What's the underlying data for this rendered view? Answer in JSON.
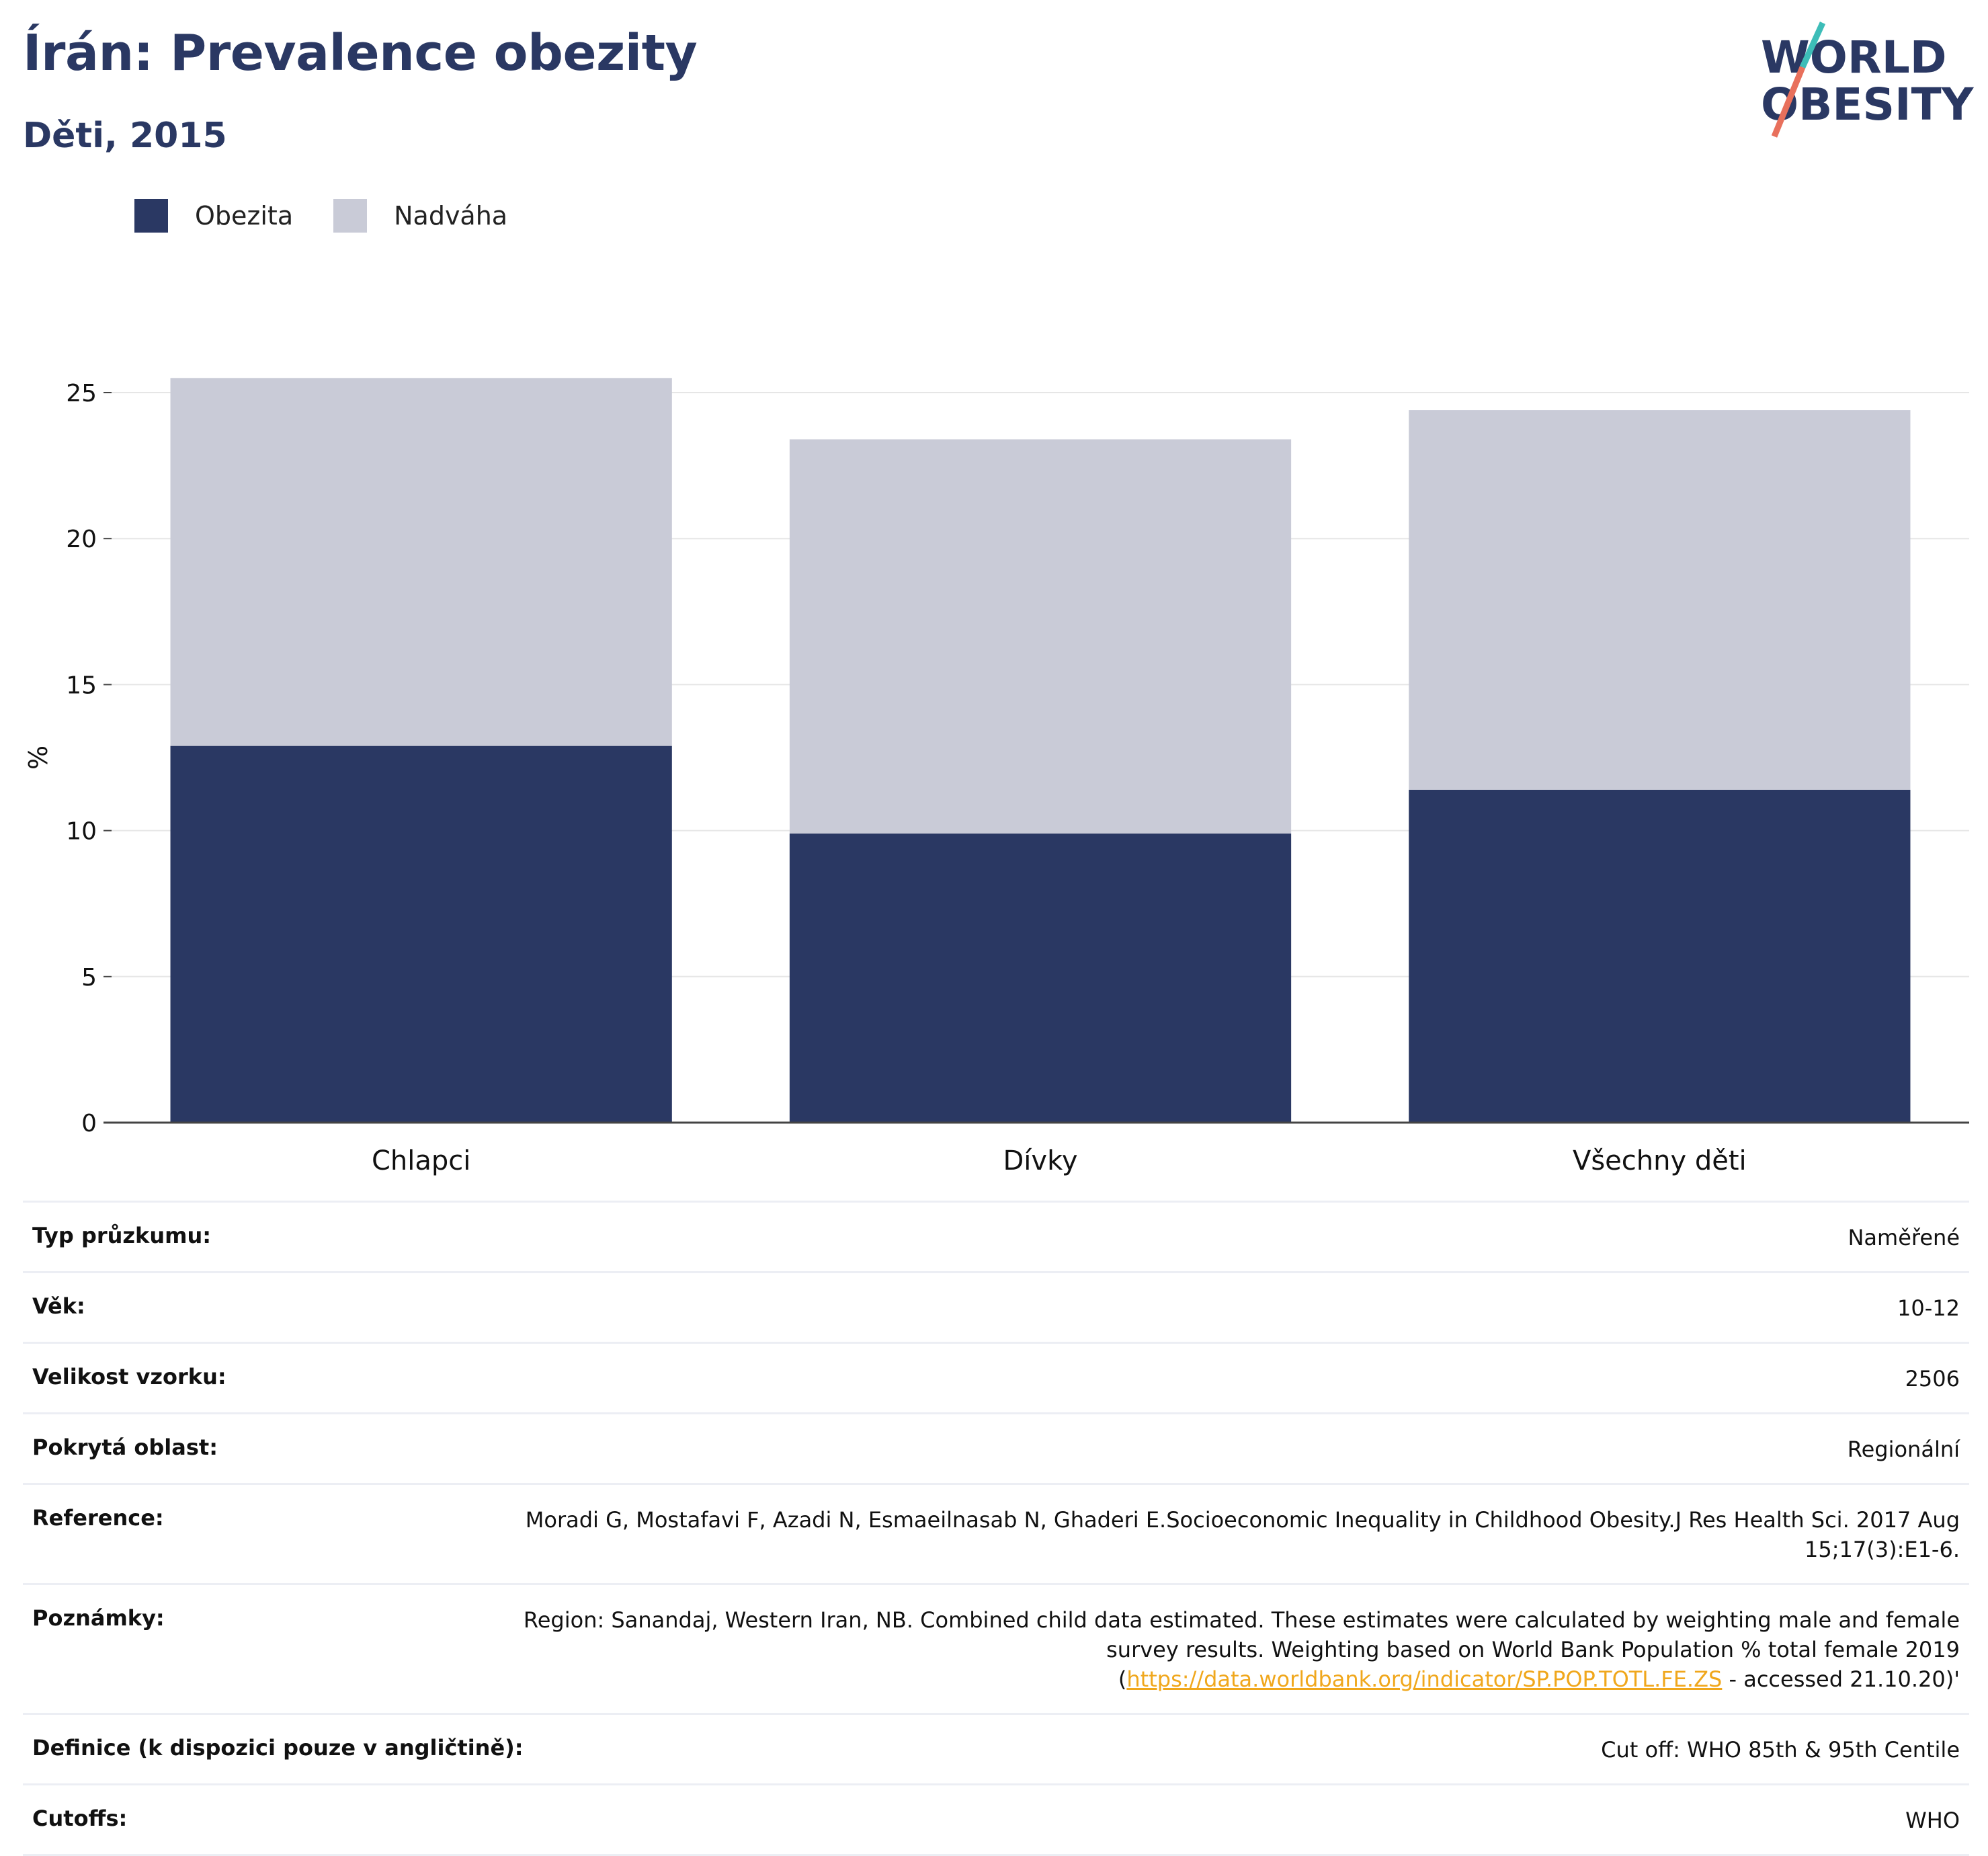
{
  "header": {
    "title": "Írán: Prevalence obezity",
    "subtitle": "Děti, 2015",
    "logo_line1": "WORLD",
    "logo_line2": "OBESITY"
  },
  "chart_data": {
    "type": "bar",
    "stacked": true,
    "categories": [
      "Chlapci",
      "Dívky",
      "Všechny děti"
    ],
    "series": [
      {
        "name": "Obezita",
        "values": [
          12.9,
          9.9,
          11.4
        ],
        "color": "#2a3863"
      },
      {
        "name": "Nadváha",
        "values": [
          12.6,
          13.5,
          13.0
        ],
        "color": "#c9cbd7"
      }
    ],
    "ylabel": "%",
    "ylim": [
      0,
      25.9
    ],
    "yticks": [
      0,
      5,
      10,
      15,
      20,
      25
    ],
    "grid": true,
    "legend_placement": "top-left"
  },
  "details": [
    {
      "key": "Typ průzkumu:",
      "value": "Naměřené"
    },
    {
      "key": "Věk:",
      "value": "10-12"
    },
    {
      "key": "Velikost vzorku:",
      "value": "2506"
    },
    {
      "key": "Pokrytá oblast:",
      "value": "Regionální"
    },
    {
      "key": "Reference:",
      "value": "Moradi G, Mostafavi F, Azadi N, Esmaeilnasab N, Ghaderi E.Socioeconomic Inequality in Childhood Obesity.J Res Health Sci. 2017 Aug 15;17(3):E1-6."
    },
    {
      "key": "Poznámky:",
      "value_pre": "Region: Sanandaj, Western Iran, NB. Combined child data estimated. These estimates were calculated by weighting male and female survey results. Weighting based on World Bank Population % total female 2019 (",
      "link": "https://data.worldbank.org/indicator/SP.POP.TOTL.FE.ZS",
      "value_post": " - accessed 21.10.20)'"
    },
    {
      "key": "Definice (k dispozici pouze v angličtině):",
      "value": "Cut off: WHO 85th & 95th Centile"
    },
    {
      "key": "Cutoffs:",
      "value": "WHO"
    }
  ]
}
